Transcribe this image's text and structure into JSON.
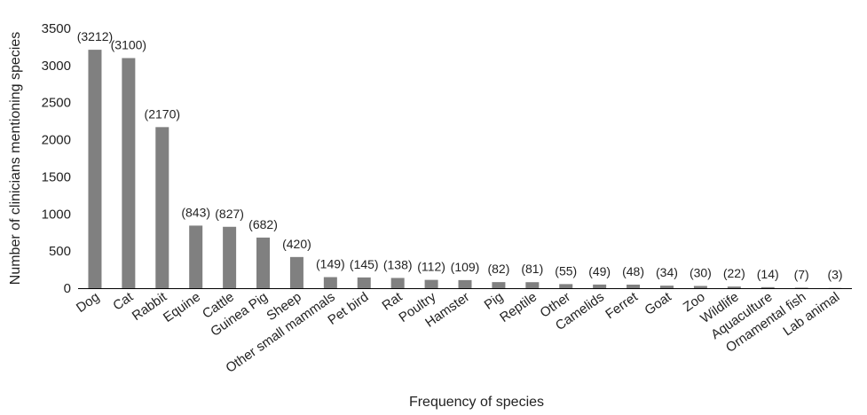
{
  "chart_data": {
    "type": "bar",
    "title": "",
    "xlabel": "Frequency of species",
    "ylabel": "Number of clinicians mentioning species",
    "ylim": [
      0,
      3500
    ],
    "yticks": [
      0,
      500,
      1000,
      1500,
      2000,
      2500,
      3000,
      3500
    ],
    "grid": false,
    "legend": "none",
    "bar_color": "#808080",
    "categories": [
      "Dog",
      "Cat",
      "Rabbit",
      "Equine",
      "Cattle",
      "Guinea Pig",
      "Sheep",
      "Other small mammals",
      "Pet bird",
      "Rat",
      "Poultry",
      "Hamster",
      "Pig",
      "Reptile",
      "Other",
      "Camelids",
      "Ferret",
      "Goat",
      "Zoo",
      "Wildlife",
      "Aquaculture",
      "Ornamental fish",
      "Lab animal"
    ],
    "values": [
      3212,
      3100,
      2170,
      843,
      827,
      682,
      420,
      149,
      145,
      138,
      112,
      109,
      82,
      81,
      55,
      49,
      48,
      34,
      30,
      22,
      14,
      7,
      3
    ],
    "data_labels": [
      "(3212)",
      "(3100)",
      "(2170)",
      "(843)",
      "(827)",
      "(682)",
      "(420)",
      "(149)",
      "(145)",
      "(138)",
      "(112)",
      "(109)",
      "(82)",
      "(81)",
      "(55)",
      "(49)",
      "(48)",
      "(34)",
      "(30)",
      "(22)",
      "(14)",
      "(7)",
      "(3)"
    ]
  }
}
